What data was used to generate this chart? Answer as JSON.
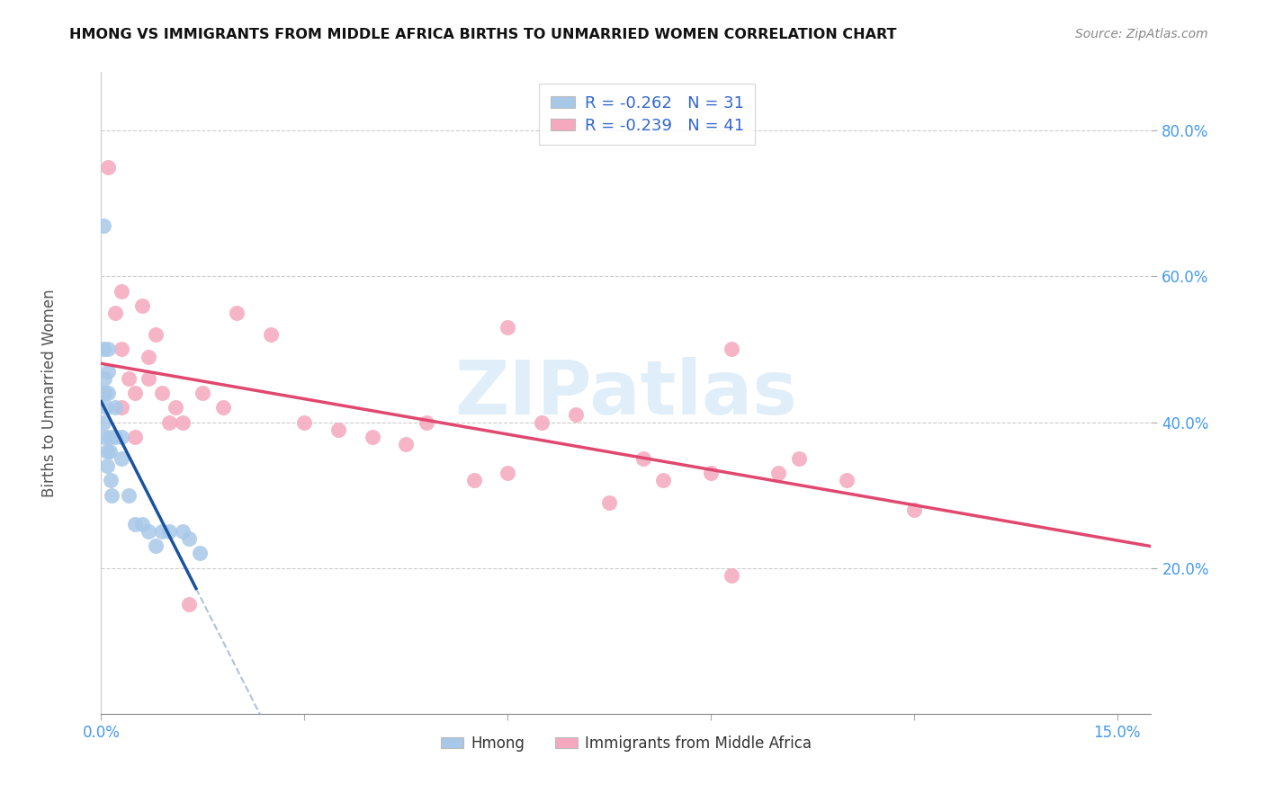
{
  "title": "HMONG VS IMMIGRANTS FROM MIDDLE AFRICA BIRTHS TO UNMARRIED WOMEN CORRELATION CHART",
  "source": "Source: ZipAtlas.com",
  "ylabel": "Births to Unmarried Women",
  "xmin": 0.0,
  "xmax": 0.155,
  "ymin": 0.0,
  "ymax": 0.88,
  "hmong_R": -0.262,
  "hmong_N": 31,
  "middle_africa_R": -0.239,
  "middle_africa_N": 41,
  "hmong_color": "#a8c8e8",
  "hmong_line_color": "#1a52a0",
  "middle_africa_color": "#f5a8be",
  "middle_africa_line_color": "#e04870",
  "watermark_text": "ZIPatlas",
  "hmong_x": [
    0.0002,
    0.0003,
    0.0003,
    0.0004,
    0.0005,
    0.0005,
    0.0006,
    0.0007,
    0.0008,
    0.0009,
    0.001,
    0.001,
    0.001,
    0.0012,
    0.0013,
    0.0014,
    0.0015,
    0.002,
    0.002,
    0.003,
    0.003,
    0.004,
    0.005,
    0.006,
    0.007,
    0.008,
    0.009,
    0.01,
    0.012,
    0.013,
    0.0145
  ],
  "hmong_y": [
    0.44,
    0.67,
    0.5,
    0.4,
    0.38,
    0.46,
    0.44,
    0.42,
    0.36,
    0.34,
    0.5,
    0.47,
    0.44,
    0.38,
    0.36,
    0.32,
    0.3,
    0.42,
    0.38,
    0.38,
    0.35,
    0.3,
    0.26,
    0.26,
    0.25,
    0.23,
    0.25,
    0.25,
    0.25,
    0.24,
    0.22
  ],
  "middle_africa_x": [
    0.001,
    0.002,
    0.003,
    0.003,
    0.004,
    0.005,
    0.006,
    0.007,
    0.007,
    0.008,
    0.009,
    0.01,
    0.011,
    0.012,
    0.015,
    0.018,
    0.02,
    0.025,
    0.03,
    0.035,
    0.04,
    0.045,
    0.048,
    0.055,
    0.06,
    0.065,
    0.07,
    0.075,
    0.08,
    0.083,
    0.09,
    0.093,
    0.1,
    0.103,
    0.11,
    0.12,
    0.003,
    0.005,
    0.06,
    0.093,
    0.013
  ],
  "middle_africa_y": [
    0.75,
    0.55,
    0.5,
    0.58,
    0.46,
    0.44,
    0.56,
    0.46,
    0.49,
    0.52,
    0.44,
    0.4,
    0.42,
    0.4,
    0.44,
    0.42,
    0.55,
    0.52,
    0.4,
    0.39,
    0.38,
    0.37,
    0.4,
    0.32,
    0.53,
    0.4,
    0.41,
    0.29,
    0.35,
    0.32,
    0.33,
    0.5,
    0.33,
    0.35,
    0.32,
    0.28,
    0.42,
    0.38,
    0.33,
    0.19,
    0.15
  ],
  "yticks": [
    0.2,
    0.4,
    0.6,
    0.8
  ],
  "ytick_labels": [
    "20.0%",
    "40.0%",
    "60.0%",
    "80.0%"
  ],
  "xtick_labels": [
    "0.0%",
    "15.0%"
  ]
}
